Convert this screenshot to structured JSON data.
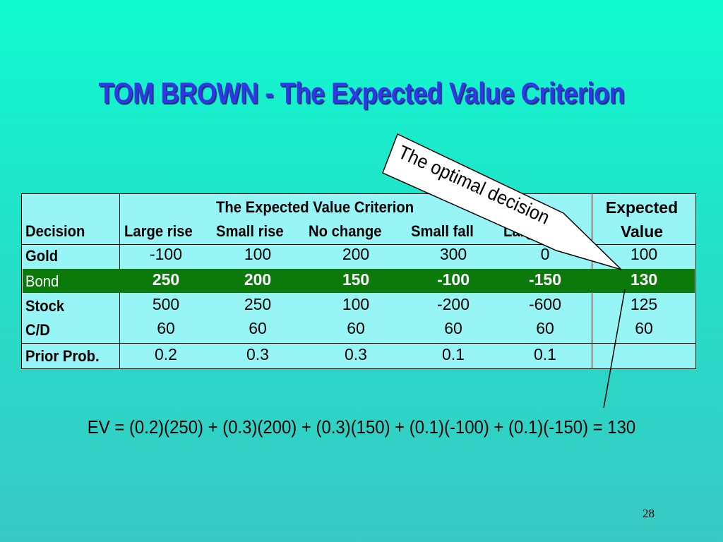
{
  "title": "TOM  BROWN - The Expected Value Criterion",
  "table": {
    "header_group": "The Expected Value Criterion",
    "decision_header": "Decision",
    "columns": [
      "Large rise",
      "Small rise",
      "No change",
      "Small fall",
      "Large fall"
    ],
    "expected_header_line1": "Expected",
    "expected_header_line2": "Value",
    "rows": [
      {
        "label": "Gold",
        "values": [
          "-100",
          "100",
          "200",
          "300",
          "0"
        ],
        "ev": "100"
      },
      {
        "label": "Bond",
        "values": [
          "250",
          "200",
          "150",
          "-100",
          "-150"
        ],
        "ev": "130"
      },
      {
        "label": "Stock",
        "values": [
          "500",
          "250",
          "100",
          "-200",
          "-600"
        ],
        "ev": "125"
      },
      {
        "label": "C/D",
        "values": [
          "60",
          "60",
          "60",
          "60",
          "60"
        ],
        "ev": "60"
      }
    ],
    "prior": {
      "label": "Prior Prob.",
      "values": [
        "0.2",
        "0.3",
        "0.3",
        "0.1",
        "0.1"
      ]
    }
  },
  "callout": "The optimal decision",
  "formula": "EV = (0.2)(250) + (0.3)(200) + (0.3)(150) + (0.1)(-100) + (0.1)(-150) = 130",
  "page_number": "28",
  "colors": {
    "title": "#3535e8",
    "highlight_row": "#0b7a0b",
    "table_bg": "#97f5f6"
  }
}
